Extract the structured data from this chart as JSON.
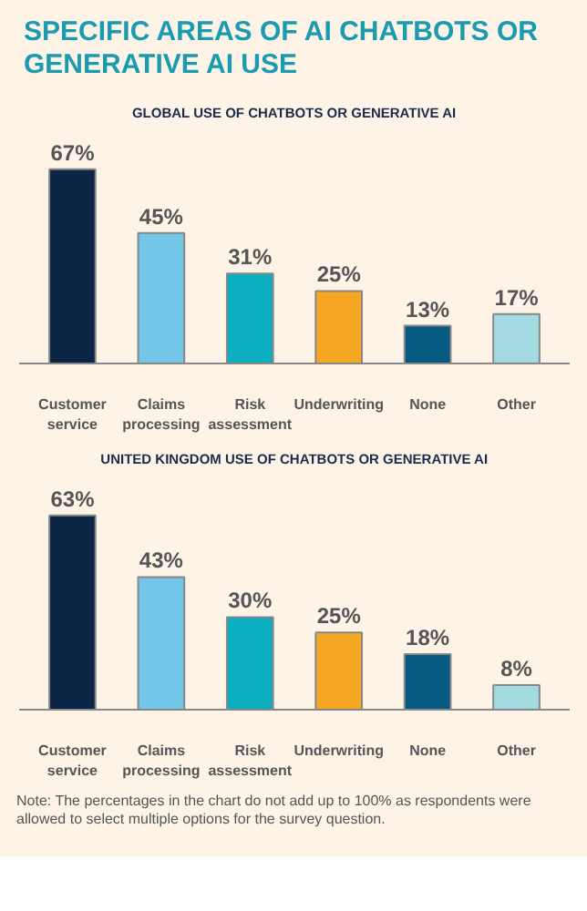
{
  "chart_data": [
    {
      "type": "bar",
      "title": "SPECIFIC AREAS OF AI CHATBOTS OR GENERATIVE AI USE",
      "subtitle": "GLOBAL USE OF CHATBOTS OR GENERATIVE AI",
      "categories": [
        "Customer service",
        "Claims processing",
        "Risk assessment",
        "Underwriting",
        "None",
        "Other"
      ],
      "values": [
        67,
        45,
        31,
        25,
        13,
        17
      ],
      "value_labels": [
        "67%",
        "45%",
        "31%",
        "25%",
        "13%",
        "17%"
      ],
      "colors": [
        "#0b2545",
        "#74c6e8",
        "#0aaebf",
        "#f5a623",
        "#065a82",
        "#a4dbe2"
      ]
    },
    {
      "type": "bar",
      "title": "UNITED KINGDOM USE OF CHATBOTS OR GENERATIVE AI",
      "categories": [
        "Customer service",
        "Claims processing",
        "Risk assessment",
        "Underwriting",
        "None",
        "Other"
      ],
      "values": [
        63,
        43,
        30,
        25,
        18,
        8
      ],
      "value_labels": [
        "63%",
        "43%",
        "30%",
        "25%",
        "18%",
        "8%"
      ],
      "colors": [
        "#0b2545",
        "#74c6e8",
        "#0aaebf",
        "#f5a623",
        "#065a82",
        "#a4dbe2"
      ],
      "annotations": [
        "Note: The percentages in the chart do not add up to 100% as respondents were allowed to select multiple options for the survey question."
      ]
    }
  ]
}
